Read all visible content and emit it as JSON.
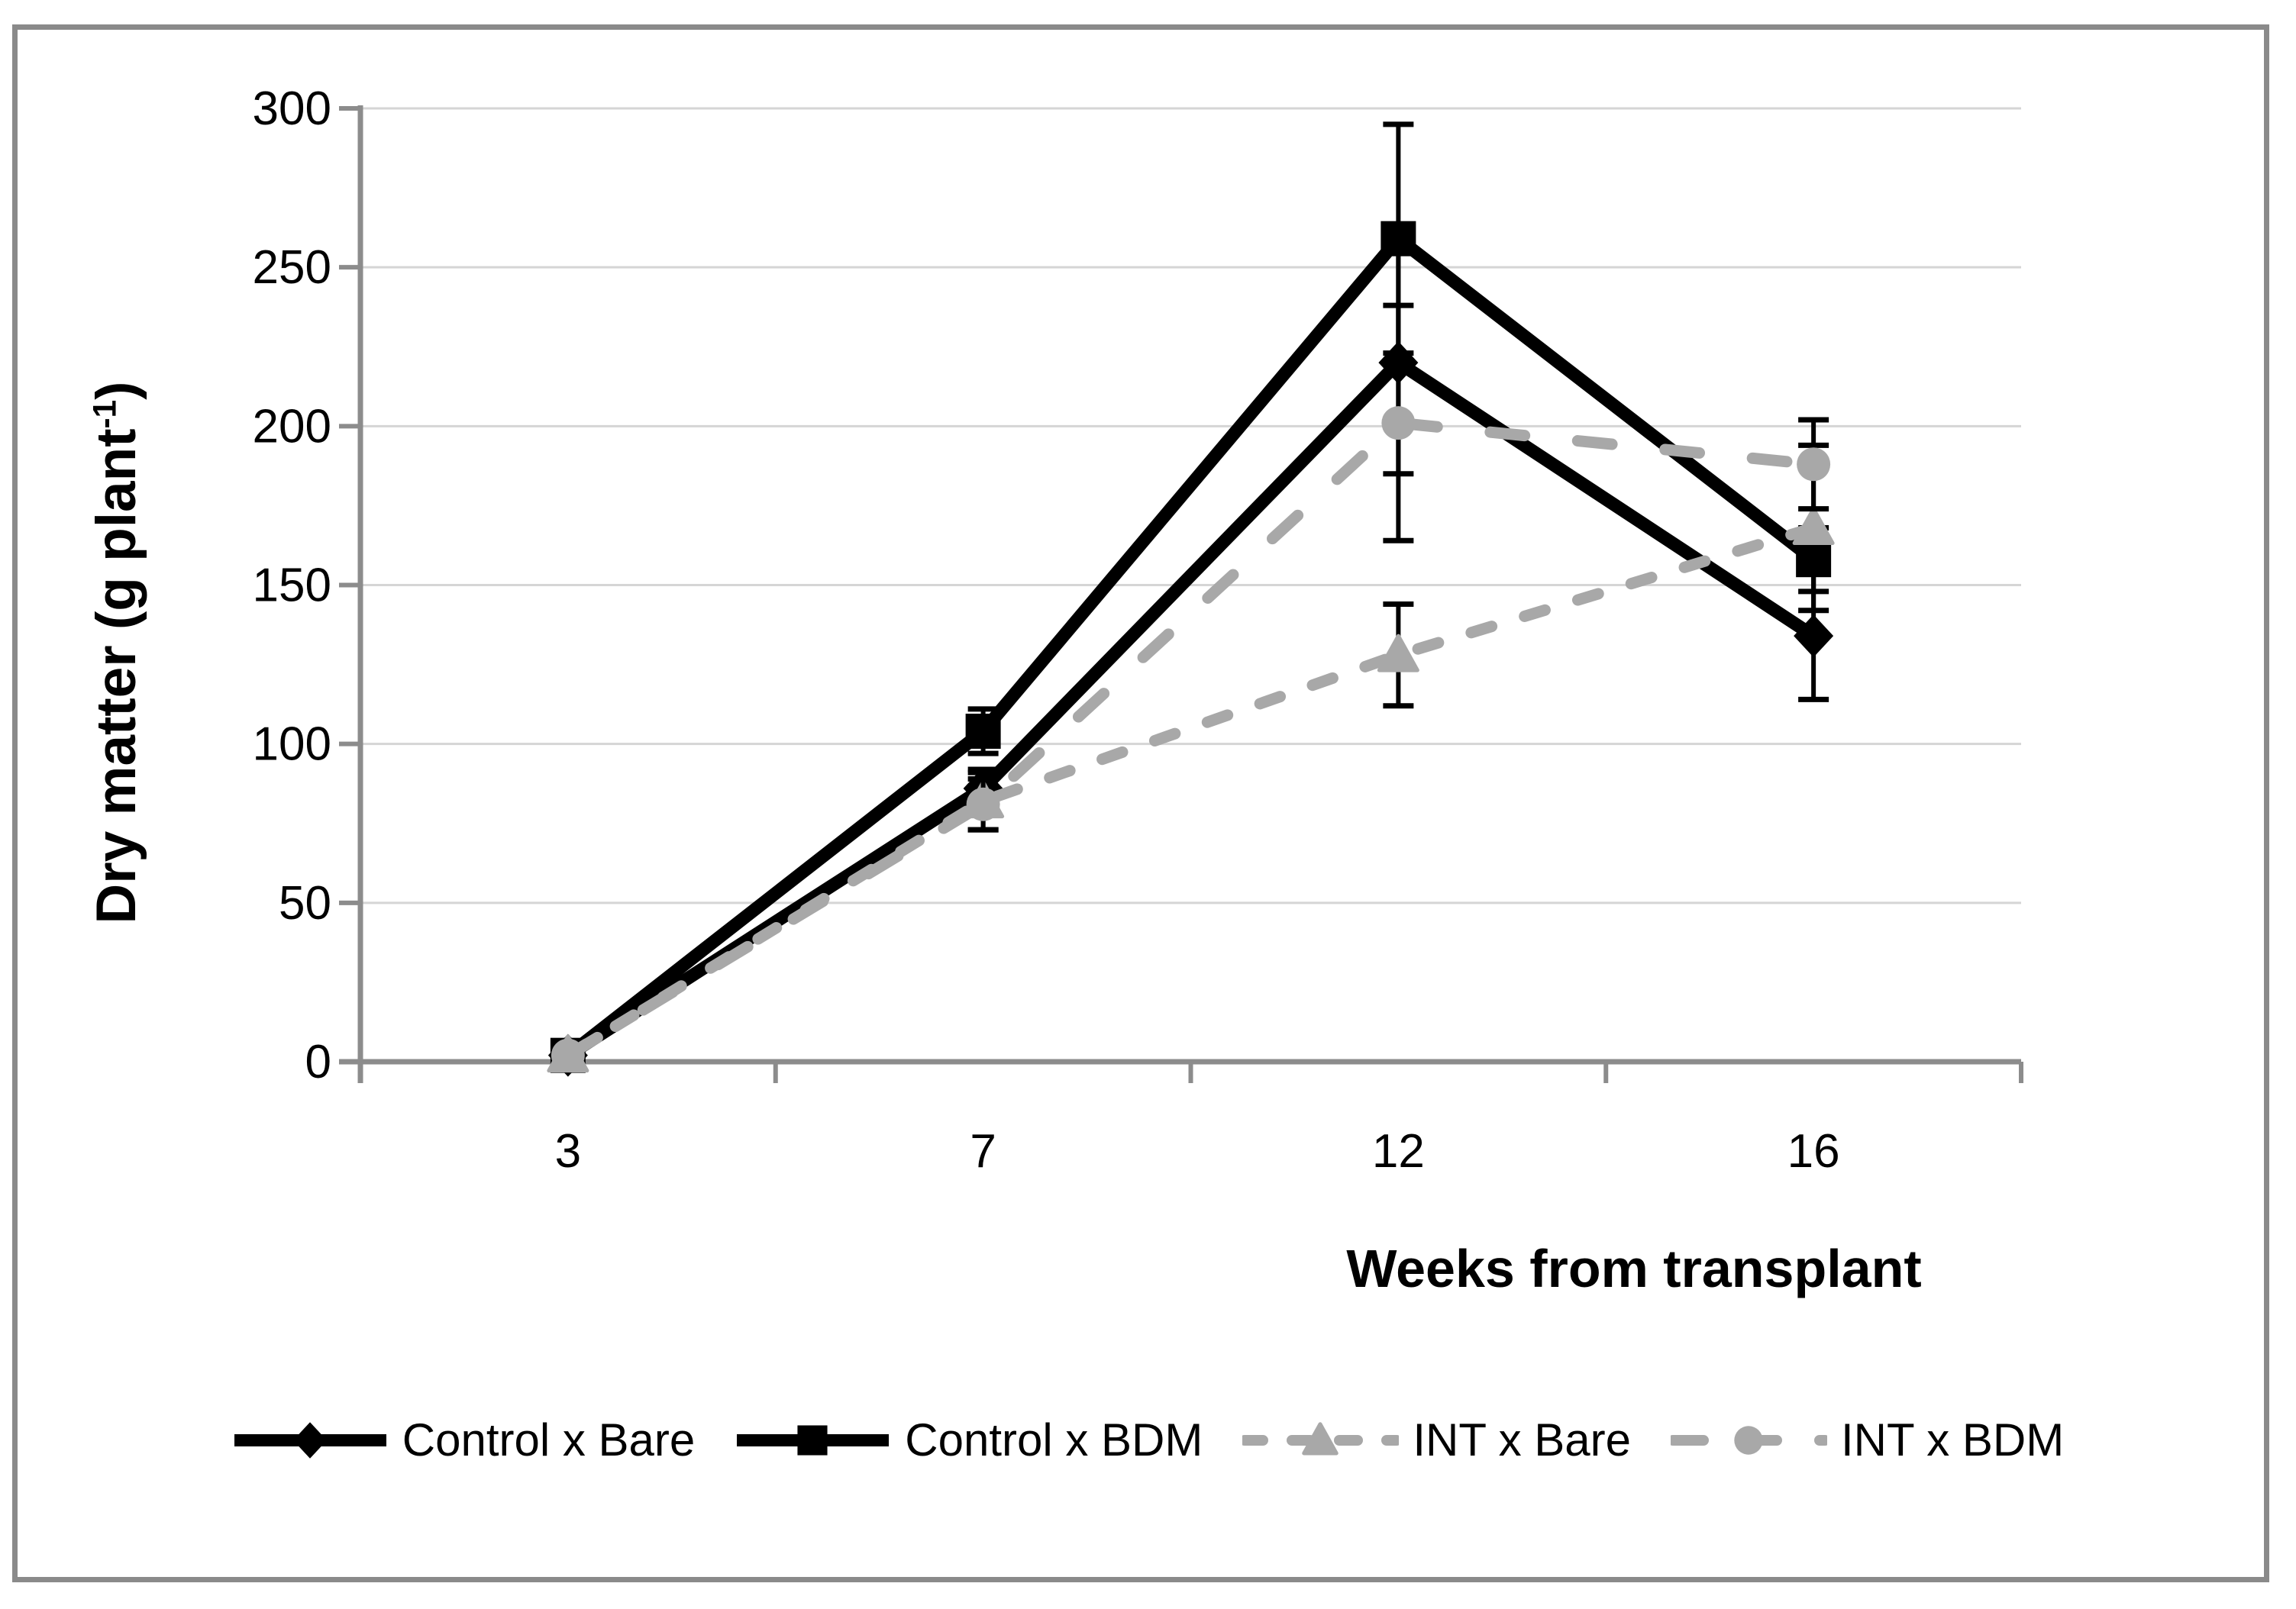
{
  "chart_data": {
    "type": "line",
    "xlabel": "Weeks from transplant",
    "ylabel": "Dry matter (g plant⁻¹)",
    "ylabel_parts": {
      "pre": "Dry matter (g plant",
      "sup": "-1",
      "post": ")"
    },
    "x": [
      3,
      7,
      12,
      16
    ],
    "x_tick_labels": [
      "3",
      "7",
      "12",
      "16"
    ],
    "ylim": [
      0,
      300
    ],
    "yticks": [
      0,
      50,
      100,
      150,
      200,
      250,
      300
    ],
    "y_tick_labels": [
      "0",
      "50",
      "100",
      "150",
      "200",
      "250",
      "300"
    ],
    "grid": "horizontal",
    "legend_position": "bottom",
    "error_bar_color": "#000000",
    "series": [
      {
        "name": "Control x Bare",
        "color": "#000000",
        "marker": "diamond",
        "line_style": "solid",
        "values": [
          2,
          86,
          220,
          134
        ],
        "errors": [
          0,
          6,
          35,
          20
        ]
      },
      {
        "name": "Control x BDM",
        "color": "#000000",
        "marker": "square",
        "line_style": "solid",
        "values": [
          2,
          104,
          259,
          158
        ],
        "errors": [
          0,
          7,
          36,
          10
        ]
      },
      {
        "name": "INT x Bare",
        "color": "#a8a8a8",
        "marker": "triangle",
        "line_style": "dashed-short",
        "values": [
          2,
          82,
          128,
          168
        ],
        "errors": [
          0,
          9,
          16,
          26
        ]
      },
      {
        "name": "INT x BDM",
        "color": "#a8a8a8",
        "marker": "circle",
        "line_style": "dashed-long",
        "values": [
          2,
          81,
          201,
          188
        ],
        "errors": [
          0,
          8,
          37,
          14
        ]
      }
    ]
  },
  "colors": {
    "background": "#ffffff",
    "frame_border": "#8a8a8a",
    "gridline": "#d5d5d5",
    "axis_line": "#8c8c8c",
    "tick_label": "#000000"
  }
}
